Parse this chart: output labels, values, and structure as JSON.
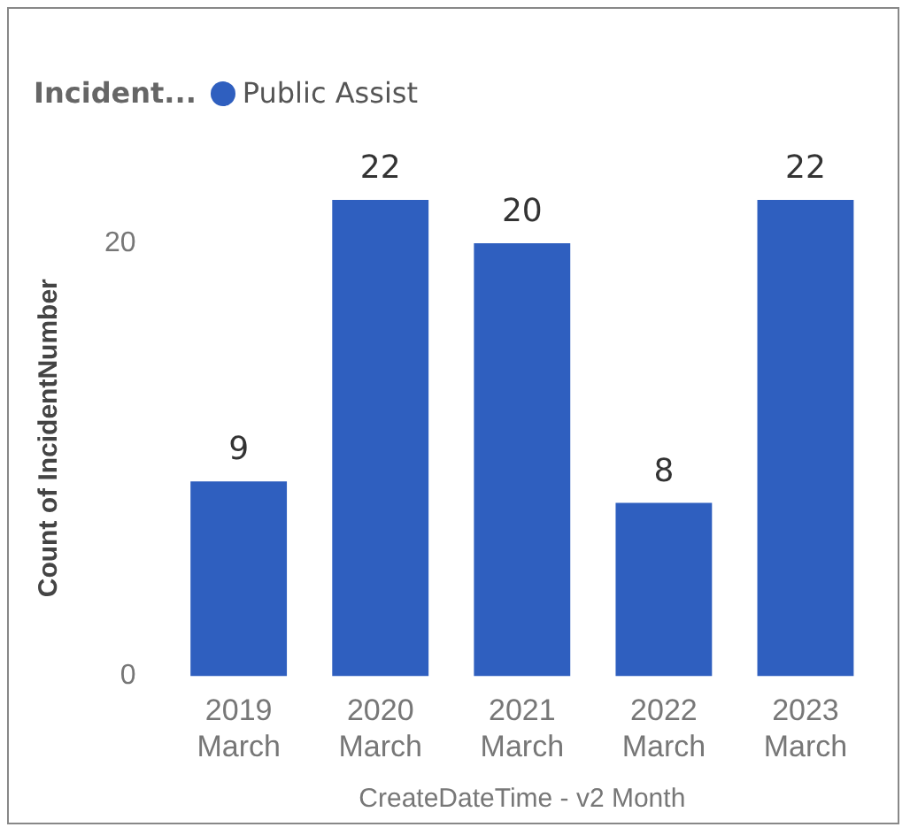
{
  "chart_data": {
    "type": "bar",
    "legend_title": "Incident...",
    "categories": [
      "2019 March",
      "2020 March",
      "2021 March",
      "2022 March",
      "2023 March"
    ],
    "series": [
      {
        "name": "Public Assist",
        "color": "#2f5fbf",
        "values": [
          9,
          22,
          20,
          8,
          22
        ]
      }
    ],
    "ylim": [
      0,
      22
    ],
    "yticks": [
      0,
      20
    ],
    "xlabel": "CreateDateTime - v2 Month",
    "ylabel": "Count of IncidentNumber",
    "data_labels": true,
    "grid": false,
    "legend": "top left"
  }
}
